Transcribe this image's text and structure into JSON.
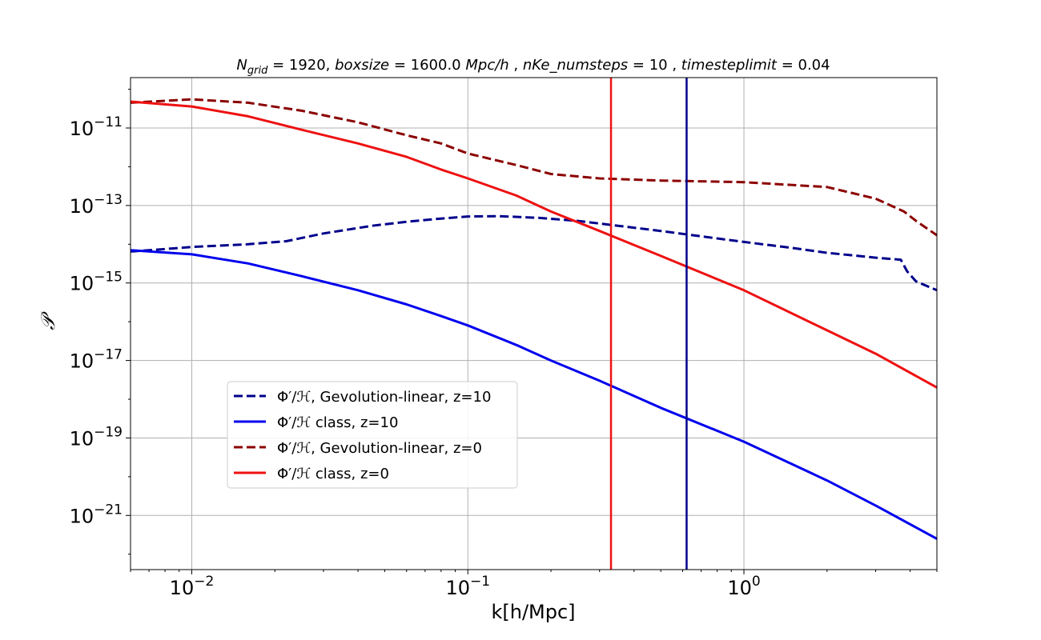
{
  "chart_data": {
    "type": "line",
    "title": {
      "parts": [
        {
          "text": "N",
          "style": "italic"
        },
        {
          "text": "grid",
          "style": "italic-sub"
        },
        {
          "text": " = 1920, ",
          "style": "normal"
        },
        {
          "text": "boxsize",
          "style": "italic"
        },
        {
          "text": " = 1600.0 ",
          "style": "normal"
        },
        {
          "text": "Mpc/h",
          "style": "italic"
        },
        {
          "text": " , ",
          "style": "normal"
        },
        {
          "text": "nKe_numsteps",
          "style": "italic"
        },
        {
          "text": " = 10 , ",
          "style": "normal"
        },
        {
          "text": "timesteplimit",
          "style": "italic"
        },
        {
          "text": " = 0.04",
          "style": "normal"
        }
      ]
    },
    "xlabel": "k[h/Mpc]",
    "ylabel": "𝒫",
    "xscale": "log",
    "yscale": "log",
    "xlim": [
      0.006,
      5.0
    ],
    "ylim": [
      4e-23,
      2e-10
    ],
    "grid": true,
    "legend_position": "lower-left",
    "xticks": [
      {
        "value": 0.01,
        "base": "10",
        "exp": "−2"
      },
      {
        "value": 0.1,
        "base": "10",
        "exp": "−1"
      },
      {
        "value": 1.0,
        "base": "10",
        "exp": "0"
      }
    ],
    "yticks": [
      {
        "value": 1e-11,
        "base": "10",
        "exp": "−11"
      },
      {
        "value": 1e-13,
        "base": "10",
        "exp": "−13"
      },
      {
        "value": 1e-15,
        "base": "10",
        "exp": "−15"
      },
      {
        "value": 1e-17,
        "base": "10",
        "exp": "−17"
      },
      {
        "value": 1e-19,
        "base": "10",
        "exp": "−19"
      },
      {
        "value": 1e-21,
        "base": "10",
        "exp": "−21"
      }
    ],
    "series": [
      {
        "name": "Φ′/ℋ, Gevolution-linear, z=10",
        "color": "#00008b",
        "dash": true,
        "x": [
          0.006,
          0.008,
          0.01,
          0.016,
          0.022,
          0.03,
          0.045,
          0.06,
          0.08,
          0.1,
          0.13,
          0.18,
          0.25,
          0.35,
          0.5,
          0.7,
          1.0,
          1.5,
          2.0,
          3.0,
          3.7,
          3.9,
          4.2,
          5.0
        ],
        "y": [
          6.5e-15,
          7.5e-15,
          8.5e-15,
          1e-14,
          1.2e-14,
          1.9e-14,
          3e-14,
          3.8e-14,
          4.6e-14,
          5.2e-14,
          5.3e-14,
          4.8e-14,
          4e-14,
          3e-14,
          2.2e-14,
          1.6e-14,
          1.15e-14,
          8e-15,
          6e-15,
          4.5e-15,
          4e-15,
          2e-15,
          1.1e-15,
          6.5e-16
        ]
      },
      {
        "name": "Φ′/ℋ class, z=10",
        "color": "#0000ee",
        "dash": false,
        "x": [
          0.006,
          0.01,
          0.016,
          0.025,
          0.04,
          0.06,
          0.08,
          0.1,
          0.15,
          0.2,
          0.3,
          0.5,
          1.0,
          2.0,
          3.0,
          5.0
        ],
        "y": [
          7e-15,
          5.5e-15,
          3.2e-15,
          1.5e-15,
          6.5e-16,
          2.8e-16,
          1.4e-16,
          8e-17,
          2.5e-17,
          1e-17,
          3e-18,
          6e-19,
          8e-20,
          8e-21,
          1.8e-21,
          2.5e-22
        ]
      },
      {
        "name": "Φ′/ℋ, Gevolution-linear, z=0",
        "color": "#8b0000",
        "dash": true,
        "x": [
          0.006,
          0.01,
          0.016,
          0.025,
          0.04,
          0.06,
          0.08,
          0.1,
          0.15,
          0.2,
          0.3,
          0.5,
          1.0,
          2.0,
          3.0,
          3.8,
          4.2,
          5.0
        ],
        "y": [
          4.5e-11,
          5.5e-11,
          4.5e-11,
          2.8e-11,
          1.4e-11,
          6.5e-12,
          4e-12,
          2.2e-12,
          1.1e-12,
          6.5e-13,
          5e-13,
          4.4e-13,
          4e-13,
          3e-13,
          1.5e-13,
          7e-14,
          4e-14,
          1.7e-14
        ]
      },
      {
        "name": "Φ′/ℋ class, z=0",
        "color": "#ee1111",
        "dash": false,
        "x": [
          0.006,
          0.01,
          0.016,
          0.025,
          0.04,
          0.06,
          0.08,
          0.1,
          0.15,
          0.2,
          0.3,
          0.5,
          1.0,
          2.0,
          3.0,
          5.0
        ],
        "y": [
          4.8e-11,
          3.6e-11,
          2e-11,
          9e-12,
          4e-12,
          1.8e-12,
          8.5e-13,
          5e-13,
          1.8e-13,
          7e-14,
          2.2e-14,
          5e-15,
          6.5e-16,
          6e-17,
          1.5e-17,
          2e-18
        ]
      }
    ],
    "vlines": [
      {
        "x": 0.33,
        "color": "#ee1111"
      },
      {
        "x": 0.62,
        "color": "#00008b"
      }
    ]
  }
}
